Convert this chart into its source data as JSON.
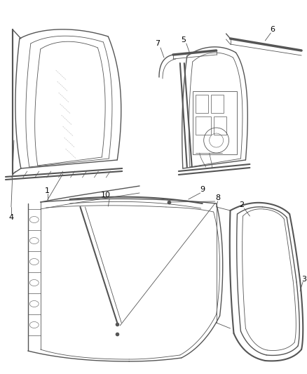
{
  "bg_color": "#ffffff",
  "line_color": "#555555",
  "label_color": "#000000",
  "lw_thin": 0.6,
  "lw_med": 1.0,
  "lw_thick": 1.5,
  "font_size": 8
}
